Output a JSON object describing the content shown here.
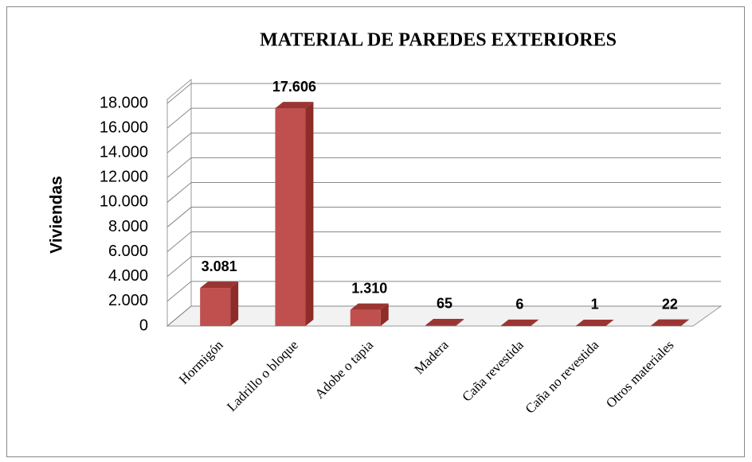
{
  "chart_data": {
    "type": "bar3d",
    "title": "MATERIAL DE PAREDES EXTERIORES",
    "y_axis_label": "Viviendas",
    "categories": [
      "Hormigón",
      "Ladrillo o bloque",
      "Adobe o tapia",
      "Madera",
      "Caña revestida",
      "Caña no revestida",
      "Otros materiales"
    ],
    "values": [
      3081,
      17606,
      1310,
      65,
      6,
      1,
      22
    ],
    "value_labels": [
      "3.081",
      "17.606",
      "1.310",
      "65",
      "6",
      "1",
      "22"
    ],
    "color": "#c0504d",
    "ylim": [
      0,
      18000
    ],
    "yticks": [
      0,
      {
        "value": 2000,
        "label": "2.000"
      },
      {
        "value": 4000,
        "label": "4.000"
      },
      {
        "value": 6000,
        "label": "6.000"
      },
      {
        "value": 8000,
        "label": "8.000"
      },
      {
        "value": 10000,
        "label": "10.000"
      },
      {
        "value": 12000,
        "label": "12.000"
      },
      {
        "value": 14000,
        "label": "14.000"
      },
      {
        "value": 16000,
        "label": "16.000"
      },
      {
        "value": 18000,
        "label": "18.000"
      }
    ],
    "grid": true
  }
}
